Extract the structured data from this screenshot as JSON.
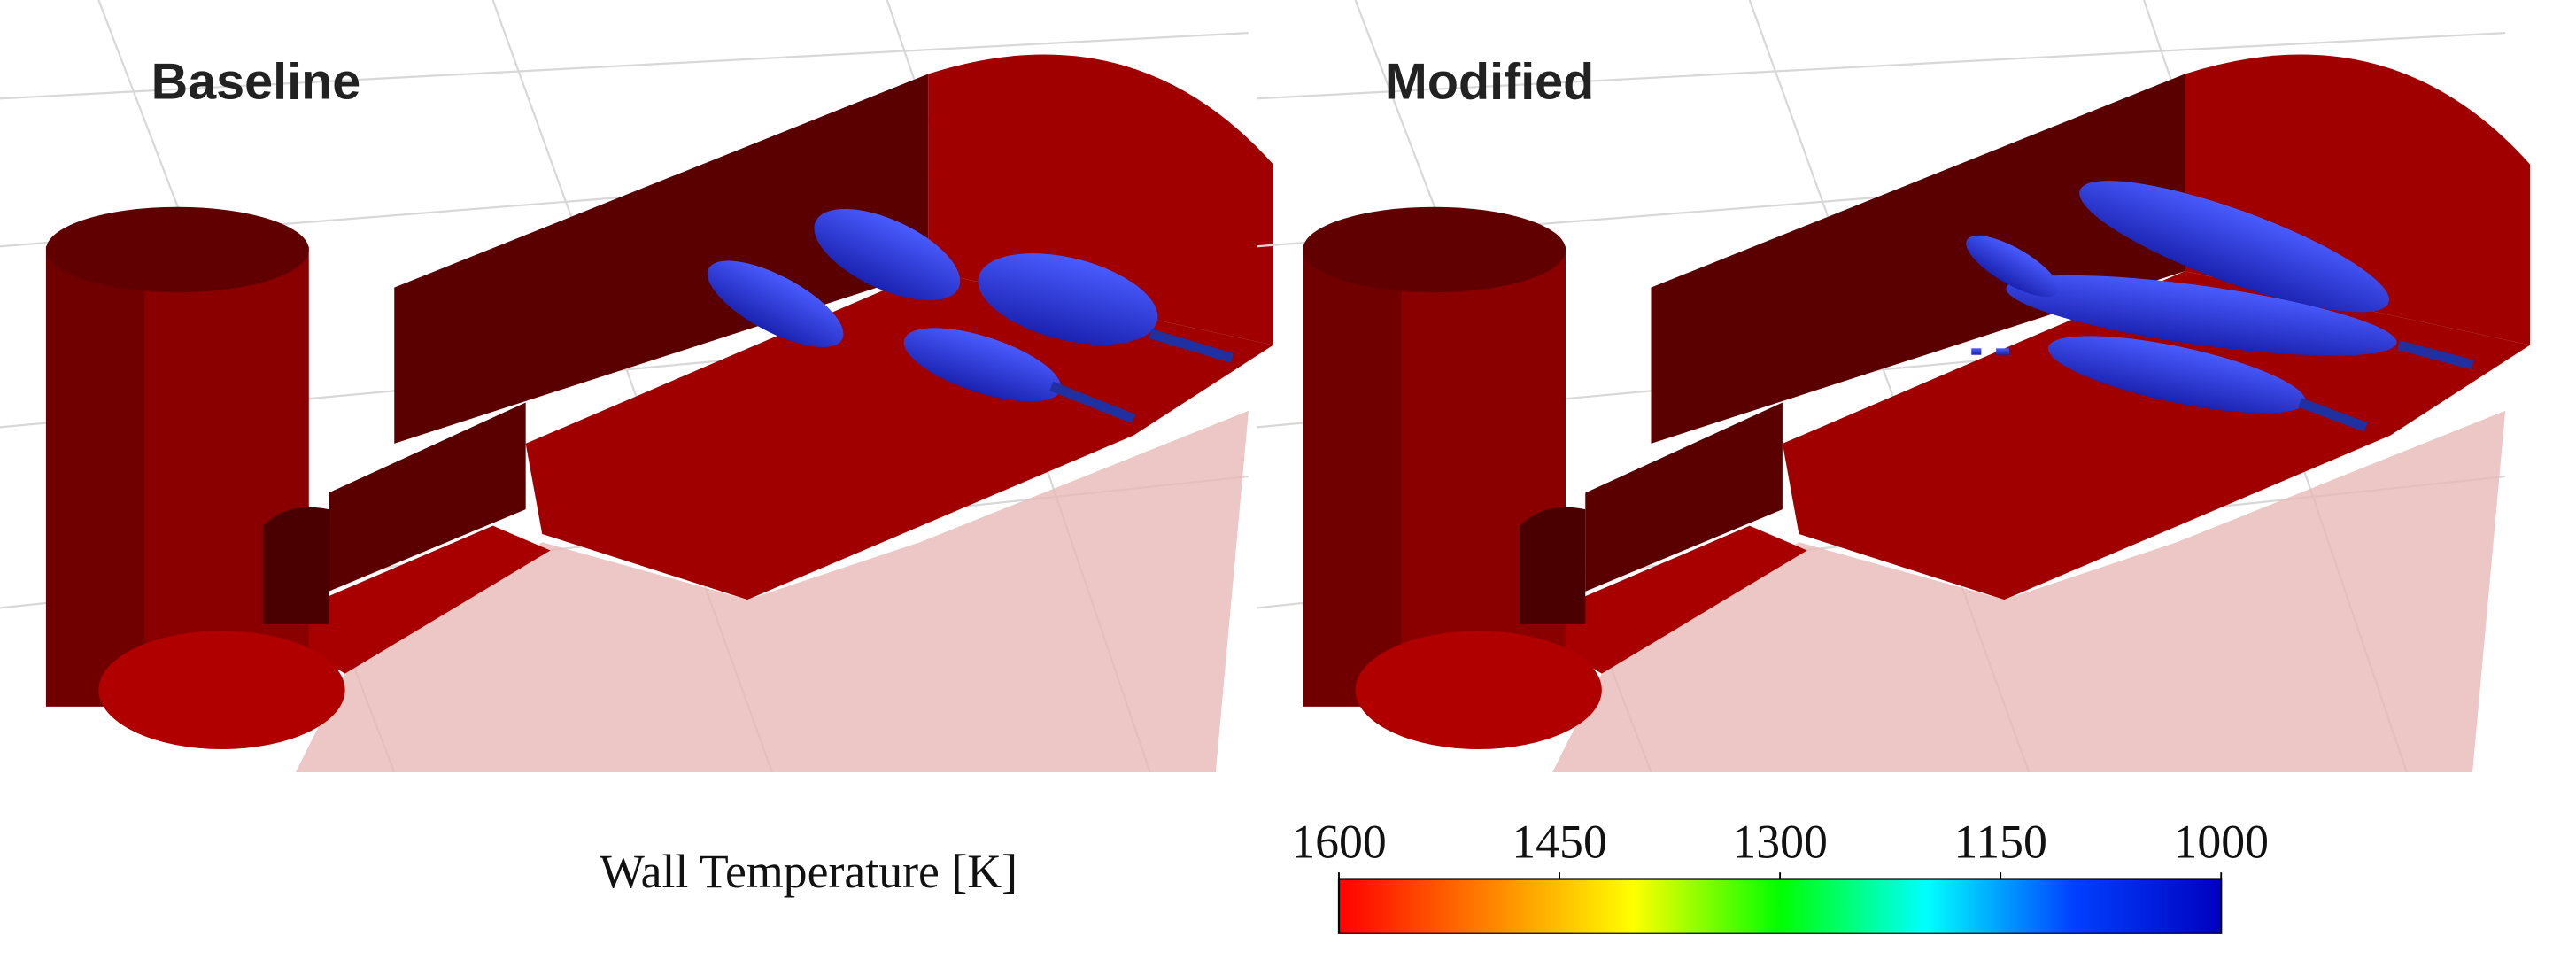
{
  "panels": [
    {
      "title": "Baseline"
    },
    {
      "title": "Modified"
    }
  ],
  "colorbar": {
    "label": "Wall Temperature [K]",
    "range": [
      1600,
      1000
    ],
    "ticks": [
      1600,
      1450,
      1300,
      1150,
      1000
    ],
    "colors": [
      "#ff0000",
      "#ff8000",
      "#ffff00",
      "#00ff00",
      "#00ffff",
      "#0040ff",
      "#0000c0"
    ]
  }
}
